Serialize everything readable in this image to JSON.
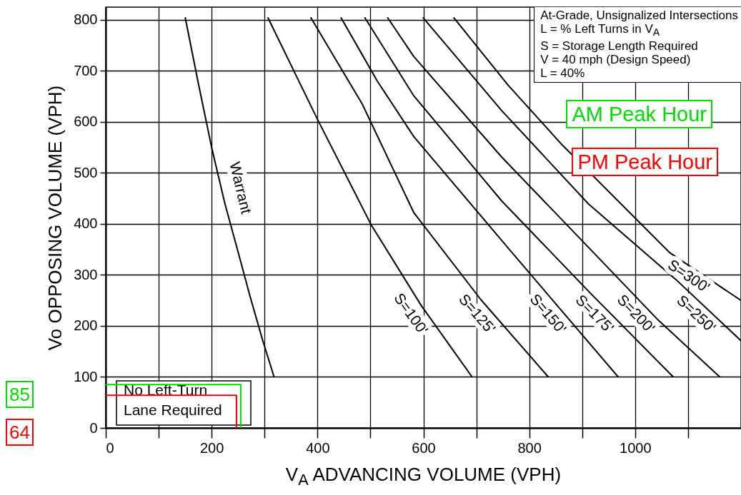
{
  "chart_data": {
    "type": "line",
    "xlabel": "V$_{A}$ ADVANCING VOLUME (VPH)",
    "ylabel": "Vo OPPOSING VOLUME (VPH)",
    "xlim": [
      0,
      1200
    ],
    "ylim": [
      0,
      825
    ],
    "xticks": [
      0,
      {
        "value": 100,
        "label": null
      },
      200,
      {
        "value": 300,
        "label": null
      },
      400,
      {
        "value": 500,
        "label": null
      },
      600,
      {
        "value": 700,
        "label": null
      },
      800,
      {
        "value": 900,
        "label": null
      },
      1000,
      {
        "value": 1100,
        "label": null
      }
    ],
    "yticks": [
      0,
      100,
      200,
      300,
      400,
      500,
      600,
      700,
      800
    ],
    "grid": true,
    "legend": "right",
    "series": [
      {
        "name": "Warrant",
        "color": "#000000",
        "x": [
          150,
          175,
          200,
          225,
          250,
          272,
          297,
          318
        ],
        "values": [
          805,
          675,
          550,
          440,
          345,
          260,
          170,
          100
        ]
      },
      {
        "name": "S=100'",
        "color": "#000000",
        "x": [
          306,
          400,
          501,
          596,
          692
        ],
        "values": [
          805,
          605,
          399,
          240,
          100
        ]
      },
      {
        "name": "S=125'",
        "color": "#000000",
        "x": [
          387,
          484,
          582,
          709,
          836
        ],
        "values": [
          805,
          636,
          422,
          251,
          100
        ]
      },
      {
        "name": "S=150'",
        "color": "#000000",
        "x": [
          444,
          513,
          582,
          764,
          968
        ],
        "values": [
          805,
          680,
          571,
          348,
          100
        ]
      },
      {
        "name": "S=175'",
        "color": "#000000",
        "x": [
          489,
          582,
          748,
          912,
          1072
        ],
        "values": [
          805,
          651,
          445,
          268,
          100
        ]
      },
      {
        "name": "S=200'",
        "color": "#000000",
        "x": [
          532,
          582,
          748,
          912,
          1044,
          1160
        ],
        "values": [
          805,
          728,
          531,
          354,
          211,
          100
        ]
      },
      {
        "name": "S=250'",
        "color": "#000000",
        "x": [
          599,
          748,
          912,
          1077,
          1200
        ],
        "values": [
          805,
          622,
          439,
          291,
          171
        ]
      },
      {
        "name": "S=300'",
        "color": "#000000",
        "x": [
          657,
          760,
          863,
          1066,
          1200
        ],
        "values": [
          805,
          672,
          554,
          343,
          250
        ]
      },
      {
        "name": "AM Peak Hour",
        "color": "#00dd00",
        "x": [
          0,
          255,
          255
        ],
        "values": [
          85,
          85,
          0
        ]
      },
      {
        "name": "PM Peak Hour",
        "color": "#ff0000",
        "x": [
          0,
          247,
          247
        ],
        "values": [
          64,
          64,
          0
        ]
      }
    ],
    "annotations": [
      "At-Grade, Unsignalized Intersections\nL = % Left Turns in V$_{A}$\nS = Storage Length Required\nV = 40 mph (Design Speed)\nL = 40%",
      "No Left-Turn\nLane Required",
      "85",
      "64"
    ]
  }
}
